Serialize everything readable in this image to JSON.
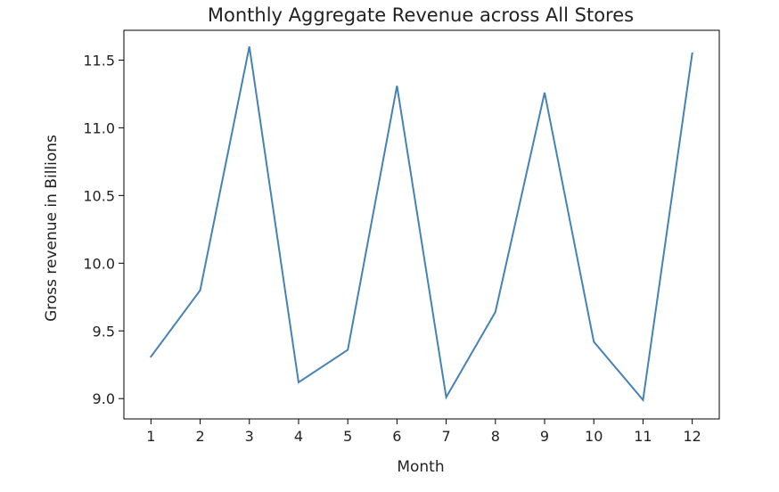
{
  "chart_data": {
    "type": "line",
    "title": "Monthly Aggregate Revenue across All Stores",
    "xlabel": "Month",
    "ylabel": "Gross revenue in Billions",
    "x": [
      1,
      2,
      3,
      4,
      5,
      6,
      7,
      8,
      9,
      10,
      11,
      12
    ],
    "xticks": [
      "1",
      "2",
      "3",
      "4",
      "5",
      "6",
      "7",
      "8",
      "9",
      "10",
      "11",
      "12"
    ],
    "yticks": [
      "9.0",
      "9.5",
      "10.0",
      "10.5",
      "11.0",
      "11.5"
    ],
    "ylim": [
      8.85,
      11.72
    ],
    "xlim": [
      0.45,
      12.55
    ],
    "grid": false,
    "series": [
      {
        "values": [
          9.31,
          9.8,
          11.6,
          9.12,
          9.36,
          11.31,
          9.01,
          9.64,
          11.26,
          9.42,
          8.99,
          11.55
        ],
        "color": "#4682b4"
      }
    ]
  }
}
